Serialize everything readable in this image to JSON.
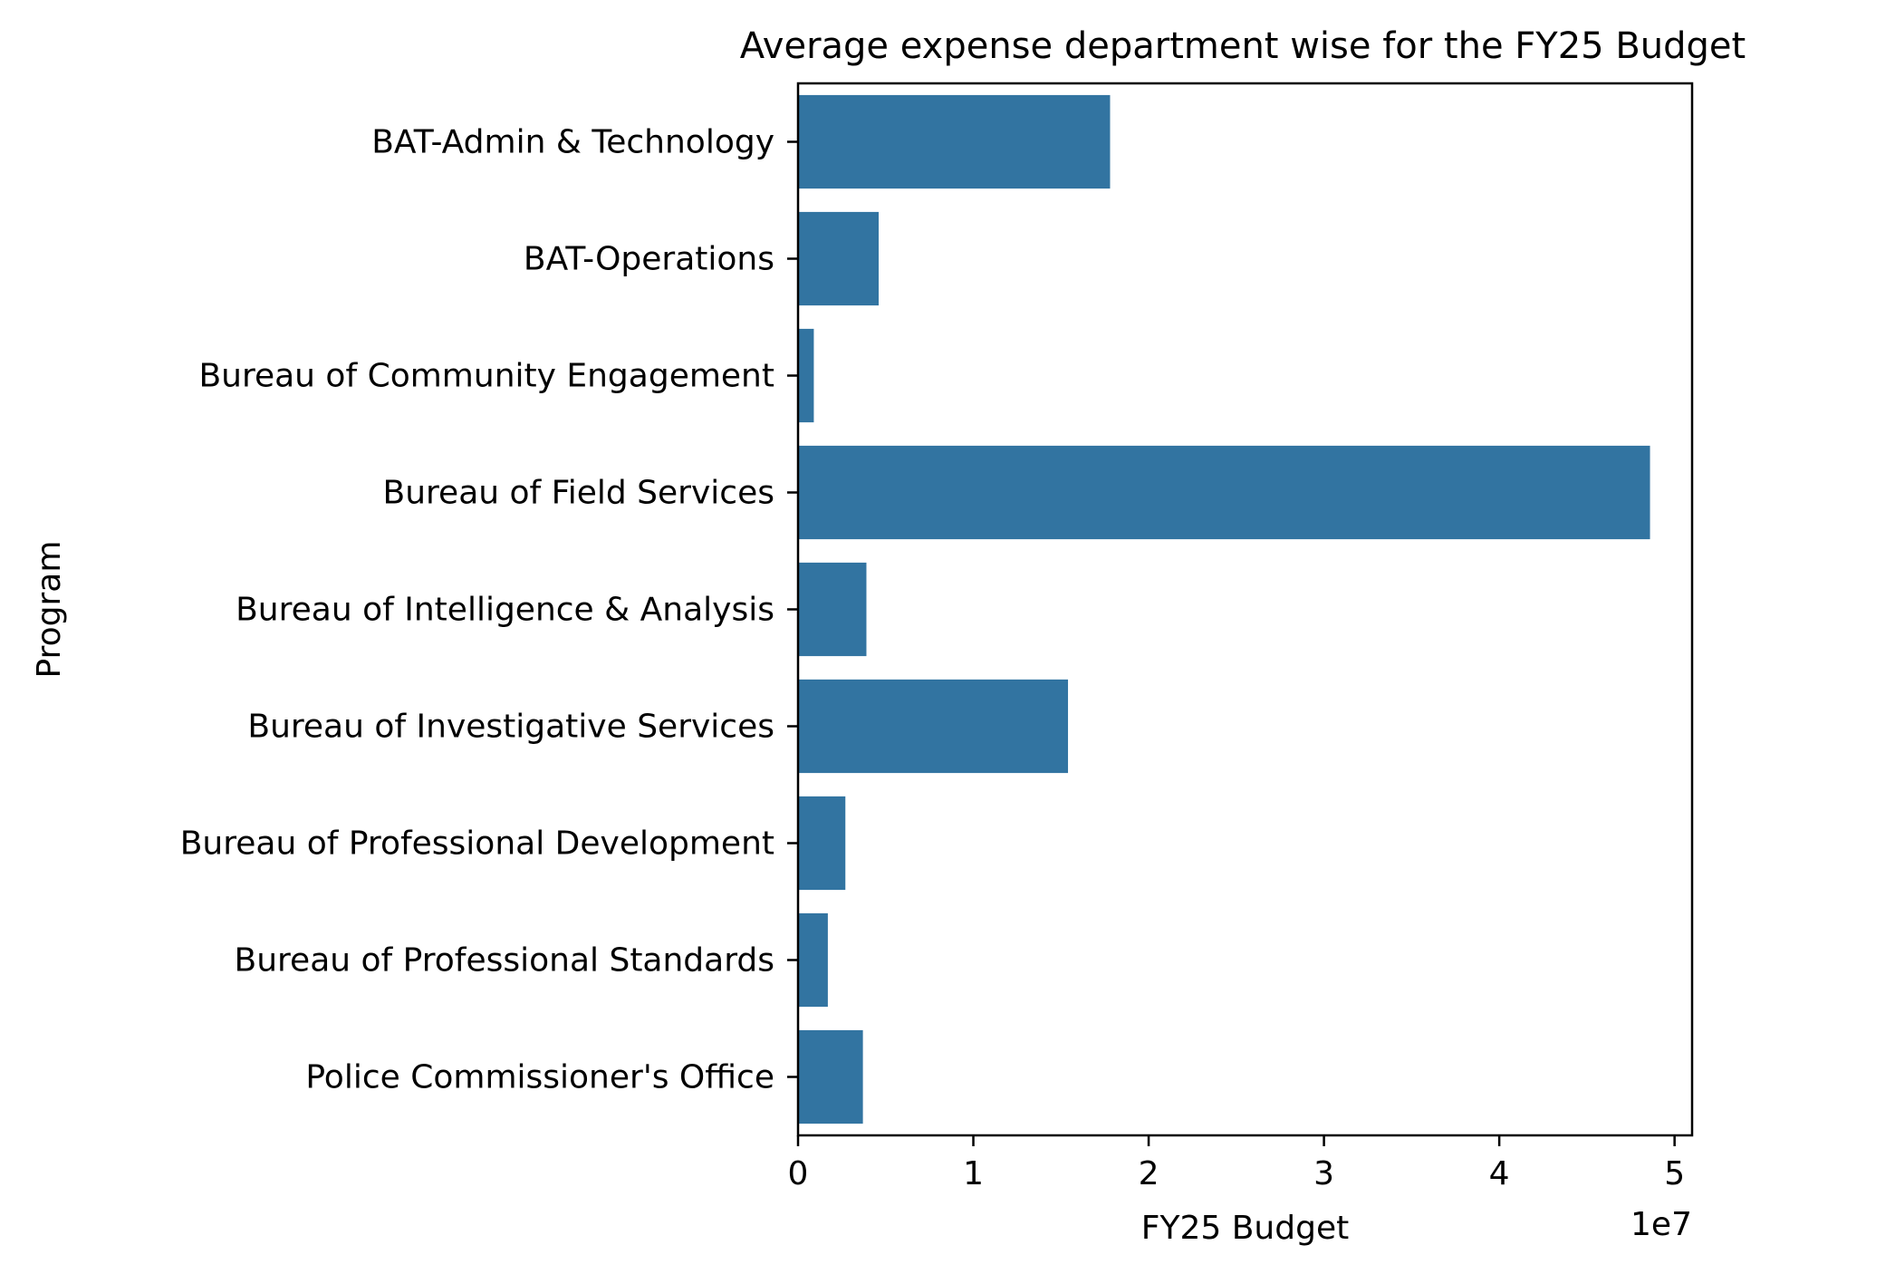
{
  "chart_data": {
    "type": "bar",
    "orientation": "horizontal",
    "title": "Average expense department wise for the FY25 Budget",
    "xlabel": "FY25 Budget",
    "ylabel": "Program",
    "x_offset_label": "1e7",
    "x_ticks": [
      0,
      1,
      2,
      3,
      4,
      5
    ],
    "x_tick_labels": [
      "0",
      "1",
      "2",
      "3",
      "4",
      "5"
    ],
    "xlim": [
      0,
      5.1
    ],
    "grid": false,
    "bar_color": "#3274a1",
    "categories": [
      "BAT-Admin & Technology",
      "BAT-Operations",
      "Bureau of Community Engagement",
      "Bureau of Field Services",
      "Bureau of Intelligence & Analysis",
      "Bureau of Investigative Services",
      "Bureau of Professional Development",
      "Bureau of Professional Standards",
      "Police Commissioner's Office"
    ],
    "values": [
      1.78,
      0.46,
      0.09,
      4.86,
      0.39,
      1.54,
      0.27,
      0.17,
      0.37
    ],
    "value_scale": 10000000
  }
}
